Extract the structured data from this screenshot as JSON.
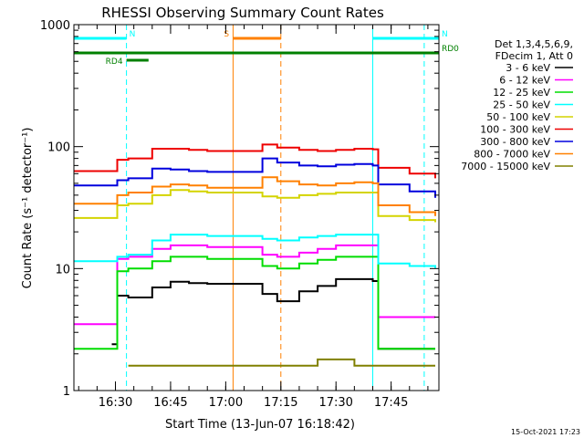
{
  "chart_data": {
    "type": "line",
    "title": "RHESSI Observing Summary Count Rates",
    "xlabel": "Start Time (13-Jun-07 16:18:42)",
    "ylabel": "Count Rate (s⁻¹ detector⁻¹)",
    "y_scale": "log",
    "ylim": [
      1,
      1000
    ],
    "xlim": [
      "16:18:42",
      "17:58:00"
    ],
    "x_ticks": [
      "16:30",
      "16:45",
      "17:00",
      "17:15",
      "17:30",
      "17:45"
    ],
    "y_ticks": [
      "1",
      "10",
      "100",
      "1000"
    ],
    "footer_date": "15-Oct-2021 17:23",
    "legend": {
      "position": "right",
      "header": [
        "Det 1,3,4,5,6,9,",
        "FDecim 1, Att 0"
      ],
      "entries": [
        {
          "label": "3 - 6 keV",
          "color": "#000000"
        },
        {
          "label": "6 - 12 keV",
          "color": "#ff00ff"
        },
        {
          "label": "12 - 25 keV",
          "color": "#00dd00"
        },
        {
          "label": "25 - 50 keV",
          "color": "#00ffff"
        },
        {
          "label": "50 - 100 keV",
          "color": "#d4d400"
        },
        {
          "label": "100 - 300 keV",
          "color": "#ee0000"
        },
        {
          "label": "300 - 800 keV",
          "color": "#0000dd"
        },
        {
          "label": "800 - 7000 keV",
          "color": "#ff8000"
        },
        {
          "label": "7000 - 15000 keV",
          "color": "#808000"
        }
      ]
    },
    "annotations": [
      {
        "label": "N",
        "color": "#00ffff",
        "x_range": [
          "16:18:42",
          "16:33:00"
        ],
        "row": "upper"
      },
      {
        "label": "N",
        "color": "#00ffff",
        "x_range": [
          "17:40:00",
          "17:58:00"
        ],
        "row": "upper"
      },
      {
        "label": "RD0",
        "color": "#008000",
        "x_range": [
          "16:18:42",
          "17:58:00"
        ],
        "row": "middle"
      },
      {
        "label": "RD4",
        "color": "#008000",
        "x_range": [
          "16:33:00",
          "16:39:00"
        ],
        "row": "lower"
      },
      {
        "label": "S",
        "color": "#ff8000",
        "x_range": [
          "17:02:00",
          "17:15:00"
        ],
        "row": "upper"
      }
    ],
    "vertical_lines": [
      {
        "time": "16:18:42",
        "color": "#00ffff",
        "style": "solid"
      },
      {
        "time": "16:33:00",
        "color": "#00ffff",
        "style": "dashed"
      },
      {
        "time": "17:02:00",
        "color": "#ff8000",
        "style": "solid"
      },
      {
        "time": "17:15:00",
        "color": "#ff8000",
        "style": "dashed"
      },
      {
        "time": "17:40:00",
        "color": "#00ffff",
        "style": "solid"
      },
      {
        "time": "17:54:00",
        "color": "#00ffff",
        "style": "dashed"
      }
    ],
    "series": [
      {
        "name": "3 - 6 keV",
        "color": "#000000",
        "x": [
          "16:29:00",
          "16:30:30",
          "16:33:30",
          "16:40:00",
          "16:45:00",
          "16:50:00",
          "16:55:00",
          "16:58:00",
          "17:10:00",
          "17:14:00",
          "17:20:00",
          "17:25:00",
          "17:30:00",
          "17:35:00",
          "17:40:00",
          "17:41:30",
          "17:50:00",
          "17:57:00"
        ],
        "y": [
          2.4,
          6.0,
          5.8,
          7.0,
          7.8,
          7.6,
          7.5,
          7.5,
          6.2,
          5.4,
          6.5,
          7.2,
          8.2,
          8.2,
          7.9,
          2.2,
          2.2,
          2.2
        ]
      },
      {
        "name": "6 - 12 keV",
        "color": "#ff00ff",
        "x": [
          "16:18:42",
          "16:29:00",
          "16:30:30",
          "16:33:30",
          "16:40:00",
          "16:45:00",
          "16:50:00",
          "16:55:00",
          "16:58:00",
          "17:10:00",
          "17:14:00",
          "17:20:00",
          "17:25:00",
          "17:30:00",
          "17:35:00",
          "17:40:00",
          "17:41:30",
          "17:50:00",
          "17:57:00"
        ],
        "y": [
          3.5,
          3.5,
          12.0,
          12.5,
          14.5,
          15.5,
          15.5,
          15.0,
          15.0,
          13.0,
          12.5,
          13.5,
          14.5,
          15.5,
          15.5,
          15.5,
          4.0,
          4.0,
          4.0
        ]
      },
      {
        "name": "12 - 25 keV",
        "color": "#00dd00",
        "x": [
          "16:18:42",
          "16:29:00",
          "16:30:30",
          "16:33:30",
          "16:40:00",
          "16:45:00",
          "16:50:00",
          "16:55:00",
          "16:58:00",
          "17:10:00",
          "17:14:00",
          "17:20:00",
          "17:25:00",
          "17:30:00",
          "17:35:00",
          "17:40:00",
          "17:41:30",
          "17:50:00",
          "17:57:00"
        ],
        "y": [
          2.2,
          2.2,
          9.5,
          10.0,
          11.5,
          12.5,
          12.5,
          12.0,
          12.0,
          10.5,
          10.0,
          11.0,
          11.8,
          12.5,
          12.5,
          12.5,
          2.2,
          2.2,
          2.2
        ]
      },
      {
        "name": "25 - 50 keV",
        "color": "#00ffff",
        "x": [
          "16:18:42",
          "16:29:00",
          "16:30:30",
          "16:33:30",
          "16:40:00",
          "16:45:00",
          "16:50:00",
          "16:55:00",
          "16:58:00",
          "17:10:00",
          "17:14:00",
          "17:20:00",
          "17:25:00",
          "17:30:00",
          "17:35:00",
          "17:40:00",
          "17:41:30",
          "17:50:00",
          "17:57:00"
        ],
        "y": [
          11.5,
          11.5,
          12.5,
          13.0,
          17.0,
          19.0,
          19.0,
          18.5,
          18.5,
          17.5,
          17.0,
          18.0,
          18.5,
          19.0,
          19.0,
          19.0,
          11.0,
          10.5,
          10.0
        ]
      },
      {
        "name": "50 - 100 keV",
        "color": "#d4d400",
        "x": [
          "16:18:42",
          "16:29:00",
          "16:30:30",
          "16:33:30",
          "16:40:00",
          "16:45:00",
          "16:50:00",
          "16:55:00",
          "16:58:00",
          "17:10:00",
          "17:14:00",
          "17:20:00",
          "17:25:00",
          "17:30:00",
          "17:35:00",
          "17:40:00",
          "17:41:30",
          "17:50:00",
          "17:57:00"
        ],
        "y": [
          26.0,
          26.0,
          33.0,
          34.0,
          40.0,
          44.0,
          43.0,
          42.0,
          42.0,
          39.0,
          38.0,
          40.0,
          41.0,
          42.0,
          42.0,
          42.0,
          27.0,
          25.0,
          24.0
        ]
      },
      {
        "name": "100 - 300 keV",
        "color": "#ee0000",
        "x": [
          "16:18:42",
          "16:29:00",
          "16:30:30",
          "16:33:30",
          "16:40:00",
          "16:45:00",
          "16:50:00",
          "16:55:00",
          "16:58:00",
          "17:10:00",
          "17:14:00",
          "17:20:00",
          "17:25:00",
          "17:30:00",
          "17:35:00",
          "17:40:00",
          "17:41:30",
          "17:50:00",
          "17:57:00"
        ],
        "y": [
          63.0,
          63.0,
          78.0,
          80.0,
          96.0,
          96.0,
          94.0,
          92.0,
          92.0,
          104.0,
          98.0,
          94.0,
          92.0,
          94.0,
          96.0,
          95.0,
          67.0,
          60.0,
          55.0
        ]
      },
      {
        "name": "300 - 800 keV",
        "color": "#0000dd",
        "x": [
          "16:18:42",
          "16:29:00",
          "16:30:30",
          "16:33:30",
          "16:40:00",
          "16:45:00",
          "16:50:00",
          "16:55:00",
          "16:58:00",
          "17:10:00",
          "17:14:00",
          "17:20:00",
          "17:25:00",
          "17:30:00",
          "17:35:00",
          "17:40:00",
          "17:41:30",
          "17:50:00",
          "17:57:00"
        ],
        "y": [
          48.0,
          48.0,
          53.0,
          55.0,
          66.0,
          65.0,
          63.0,
          62.0,
          62.0,
          80.0,
          74.0,
          70.0,
          69.0,
          71.0,
          72.0,
          70.0,
          49.0,
          43.0,
          38.0
        ]
      },
      {
        "name": "800 - 7000 keV",
        "color": "#ff8000",
        "x": [
          "16:18:42",
          "16:29:00",
          "16:30:30",
          "16:33:30",
          "16:40:00",
          "16:45:00",
          "16:50:00",
          "16:55:00",
          "16:58:00",
          "17:10:00",
          "17:14:00",
          "17:20:00",
          "17:25:00",
          "17:30:00",
          "17:35:00",
          "17:40:00",
          "17:41:30",
          "17:50:00",
          "17:57:00"
        ],
        "y": [
          34.0,
          34.0,
          40.0,
          42.0,
          47.0,
          49.0,
          48.0,
          46.0,
          46.0,
          56.0,
          52.0,
          49.0,
          48.0,
          50.0,
          51.0,
          50.0,
          33.0,
          29.0,
          27.0
        ]
      },
      {
        "name": "7000 - 15000 keV",
        "color": "#808000",
        "x": [
          "16:33:30",
          "16:40:00",
          "16:45:00",
          "16:50:00",
          "16:55:00",
          "16:58:00",
          "17:10:00",
          "17:14:00",
          "17:20:00",
          "17:25:00",
          "17:30:00",
          "17:35:00",
          "17:40:00",
          "17:45:00",
          "17:50:00",
          "17:57:00"
        ],
        "y": [
          1.6,
          1.6,
          1.6,
          1.6,
          1.6,
          1.6,
          1.6,
          1.6,
          1.6,
          1.8,
          1.8,
          1.6,
          1.6,
          1.6,
          1.6,
          1.6
        ]
      }
    ],
    "grid": false
  }
}
